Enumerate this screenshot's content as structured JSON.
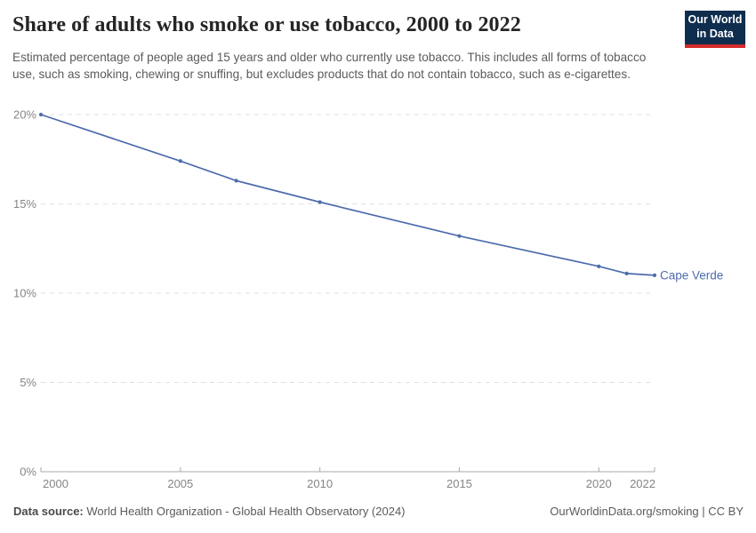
{
  "header": {
    "title": "Share of adults who smoke or use tobacco, 2000 to 2022",
    "subtitle": "Estimated percentage of people aged 15 years and older who currently use tobacco. This includes all forms of tobacco use, such as smoking, chewing or snuffing, but excludes products that do not contain tobacco, such as e-cigarettes.",
    "logo": {
      "line1": "Our World",
      "line2": "in Data"
    }
  },
  "chart_data": {
    "type": "line",
    "title": "Share of adults who smoke or use tobacco, 2000 to 2022",
    "xlabel": "",
    "ylabel": "",
    "xlim": [
      2000,
      2022
    ],
    "ylim": [
      0,
      20
    ],
    "x_ticks": [
      2000,
      2005,
      2010,
      2015,
      2020,
      2022
    ],
    "y_ticks": [
      0,
      5,
      10,
      15,
      20
    ],
    "y_tick_suffix": "%",
    "grid": "horizontal-dashed",
    "legend_position": "end-of-line-label",
    "series": [
      {
        "name": "Cape Verde",
        "color": "#4d6cad",
        "x": [
          2000,
          2005,
          2007,
          2010,
          2015,
          2020,
          2021,
          2022
        ],
        "y": [
          20.0,
          17.4,
          16.3,
          15.1,
          13.2,
          11.5,
          11.1,
          11.0
        ]
      }
    ]
  },
  "footer": {
    "source_label": "Data source:",
    "source_text": " World Health Organization - Global Health Observatory (2024)",
    "right_text": "OurWorldinData.org/smoking | CC BY"
  },
  "colors": {
    "line": "#4d6cad",
    "grid": "#e2e2e2",
    "axis": "#a8a8a8",
    "tick_label": "#858585",
    "logo_bg": "#0f2d4e",
    "logo_accent": "#d42b2b"
  }
}
